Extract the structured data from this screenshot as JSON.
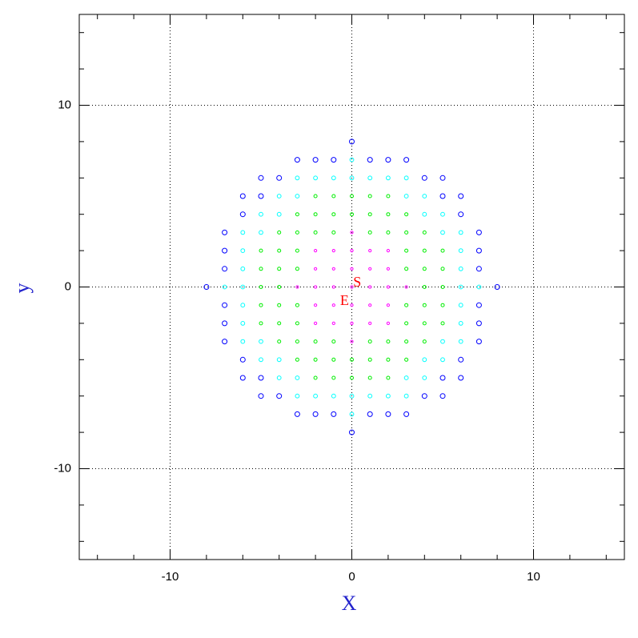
{
  "chart_data": {
    "type": "scatter",
    "xlabel": "X",
    "ylabel": "y",
    "xlim": [
      -15,
      15
    ],
    "ylim": [
      -15,
      15
    ],
    "xticks": [
      -10,
      0,
      10
    ],
    "yticks": [
      -10,
      0,
      10
    ],
    "minor_ticks": [
      -14,
      -12,
      -10,
      -8,
      -6,
      -4,
      -2,
      0,
      2,
      4,
      6,
      8,
      10,
      12,
      14
    ],
    "grid": true,
    "series": [
      {
        "color": "#ff00ff",
        "x": [
          -3,
          -2,
          -1,
          0,
          1,
          2,
          3,
          -2,
          -1,
          0,
          1,
          2,
          -2,
          -1,
          0,
          1,
          2,
          -2,
          -1,
          0,
          1,
          2,
          -2,
          -1,
          0,
          1,
          2,
          0,
          0
        ],
        "values": [
          0,
          0,
          0,
          0,
          0,
          0,
          0,
          1,
          1,
          1,
          1,
          1,
          -1,
          -1,
          -1,
          -1,
          -1,
          2,
          2,
          2,
          2,
          2,
          -2,
          -2,
          -2,
          -2,
          -2,
          3,
          -3
        ]
      },
      {
        "color": "#00ee00",
        "x": [
          -5,
          -4,
          4,
          5,
          -5,
          -4,
          -3,
          3,
          4,
          5,
          -5,
          -4,
          -3,
          3,
          4,
          5,
          -5,
          -4,
          -3,
          3,
          4,
          5,
          -5,
          -4,
          -3,
          3,
          4,
          5,
          -4,
          -3,
          -2,
          -1,
          1,
          2,
          3,
          4,
          -4,
          -3,
          -2,
          -1,
          1,
          2,
          3,
          4,
          -3,
          -2,
          -1,
          0,
          1,
          2,
          3,
          -3,
          -2,
          -1,
          0,
          1,
          2,
          3,
          -2,
          -1,
          0,
          1,
          2,
          -2,
          -1,
          0,
          1,
          2
        ],
        "values": [
          0,
          0,
          0,
          0,
          1,
          1,
          1,
          1,
          1,
          1,
          -1,
          -1,
          -1,
          -1,
          -1,
          -1,
          2,
          2,
          2,
          2,
          2,
          2,
          -2,
          -2,
          -2,
          -2,
          -2,
          -2,
          3,
          3,
          3,
          3,
          3,
          3,
          3,
          3,
          -3,
          -3,
          -3,
          -3,
          -3,
          -3,
          -3,
          -3,
          4,
          4,
          4,
          4,
          4,
          4,
          4,
          -4,
          -4,
          -4,
          -4,
          -4,
          -4,
          -4,
          5,
          5,
          5,
          5,
          5,
          -5,
          -5,
          -5,
          -5,
          -5
        ]
      },
      {
        "color": "#00ffff",
        "x": [
          -7,
          -6,
          6,
          7,
          -6,
          6,
          -6,
          6,
          -6,
          6,
          -6,
          6,
          -6,
          -5,
          5,
          6,
          -6,
          -5,
          5,
          6,
          -5,
          -4,
          4,
          5,
          -5,
          -4,
          4,
          5,
          -4,
          -3,
          3,
          4,
          -4,
          -3,
          3,
          4,
          -3,
          -2,
          -1,
          0,
          1,
          2,
          3,
          -3,
          -2,
          -1,
          0,
          1,
          2,
          3,
          0,
          0
        ],
        "values": [
          0,
          0,
          0,
          0,
          1,
          1,
          -1,
          -1,
          2,
          2,
          -2,
          -2,
          3,
          3,
          3,
          3,
          -3,
          -3,
          -3,
          -3,
          4,
          4,
          4,
          4,
          -4,
          -4,
          -4,
          -4,
          5,
          5,
          5,
          5,
          -5,
          -5,
          -5,
          -5,
          6,
          6,
          6,
          6,
          6,
          6,
          6,
          -6,
          -6,
          -6,
          -6,
          -6,
          -6,
          -6,
          7,
          -7
        ]
      },
      {
        "color": "#0000ff",
        "x": [
          -8,
          8,
          -7,
          7,
          -7,
          7,
          -7,
          7,
          -7,
          7,
          -7,
          7,
          -7,
          7,
          -6,
          6,
          -6,
          6,
          -6,
          -5,
          5,
          6,
          -6,
          -5,
          5,
          6,
          -5,
          -4,
          4,
          5,
          -5,
          -4,
          4,
          5,
          -3,
          -2,
          -1,
          1,
          2,
          3,
          -3,
          -2,
          -1,
          1,
          2,
          3,
          0,
          0
        ],
        "values": [
          0,
          0,
          1,
          1,
          -1,
          -1,
          2,
          2,
          -2,
          -2,
          3,
          3,
          -3,
          -3,
          4,
          4,
          -4,
          -4,
          5,
          5,
          5,
          5,
          -5,
          -5,
          -5,
          -5,
          6,
          6,
          6,
          6,
          -6,
          -6,
          -6,
          -6,
          7,
          7,
          7,
          7,
          7,
          7,
          -7,
          -7,
          -7,
          -7,
          -7,
          -7,
          8,
          -8
        ]
      }
    ],
    "annotations": [
      {
        "text": "S",
        "x": 0.3,
        "y": 0.2,
        "color": "#ff0000"
      },
      {
        "text": "E",
        "x": -0.4,
        "y": -0.8,
        "color": "#ff0000"
      }
    ]
  }
}
